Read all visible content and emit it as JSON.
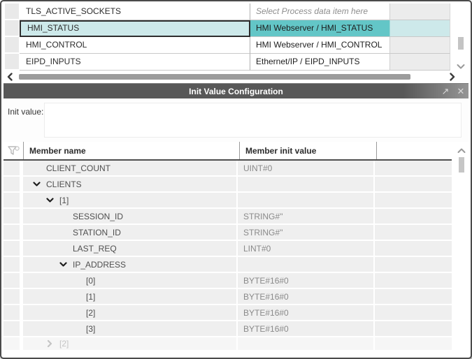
{
  "top_table": {
    "rows": [
      {
        "name": "TLS_ACTIVE_SOCKETS",
        "value": "Select Process data item here",
        "placeholder": true,
        "selected": false
      },
      {
        "name": "HMI_STATUS",
        "value": "HMI Webserver / HMI_STATUS",
        "placeholder": false,
        "selected": true
      },
      {
        "name": "HMI_CONTROL",
        "value": "HMI Webserver / HMI_CONTROL",
        "placeholder": false,
        "selected": false
      },
      {
        "name": "EIPD_INPUTS",
        "value": "Ethernet/IP / EIPD_INPUTS",
        "placeholder": false,
        "selected": false
      }
    ]
  },
  "dialog": {
    "title": "Init Value Configuration",
    "icons": {
      "popout": "↗",
      "close": "✕"
    },
    "init_value_label": "Init value:",
    "init_value_text": "",
    "table": {
      "columns": [
        "Member name",
        "Member init value",
        ""
      ],
      "rows": [
        {
          "name": "CLIENT_COUNT",
          "value": "UINT#0",
          "level": 1,
          "expander": "none",
          "partial": false
        },
        {
          "name": "CLIENTS",
          "value": "",
          "level": 1,
          "expander": "down",
          "partial": false
        },
        {
          "name": "[1]",
          "value": "",
          "level": 2,
          "expander": "down",
          "partial": false
        },
        {
          "name": "SESSION_ID",
          "value": "STRING#''",
          "level": 3,
          "expander": "none",
          "partial": false
        },
        {
          "name": "STATION_ID",
          "value": "STRING#''",
          "level": 3,
          "expander": "none",
          "partial": false
        },
        {
          "name": "LAST_REQ",
          "value": "LINT#0",
          "level": 3,
          "expander": "none",
          "partial": false
        },
        {
          "name": "IP_ADDRESS",
          "value": "",
          "level": 3,
          "expander": "down",
          "partial": false
        },
        {
          "name": "[0]",
          "value": "BYTE#16#0",
          "level": 4,
          "expander": "none",
          "partial": false
        },
        {
          "name": "[1]",
          "value": "BYTE#16#0",
          "level": 4,
          "expander": "none",
          "partial": false
        },
        {
          "name": "[2]",
          "value": "BYTE#16#0",
          "level": 4,
          "expander": "none",
          "partial": false
        },
        {
          "name": "[3]",
          "value": "BYTE#16#0",
          "level": 4,
          "expander": "none",
          "partial": false
        },
        {
          "name": "[2]",
          "value": "",
          "level": 2,
          "expander": "right",
          "partial": true
        }
      ]
    }
  },
  "colors": {
    "selection_teal": "#63c6c7",
    "selection_teal_light": "#cde9ea",
    "titlebar_gray": "#585858",
    "row_band": "#efefef",
    "header_border": "#4f4f4f",
    "scrollbar_thumb": "#9c9c9c"
  }
}
